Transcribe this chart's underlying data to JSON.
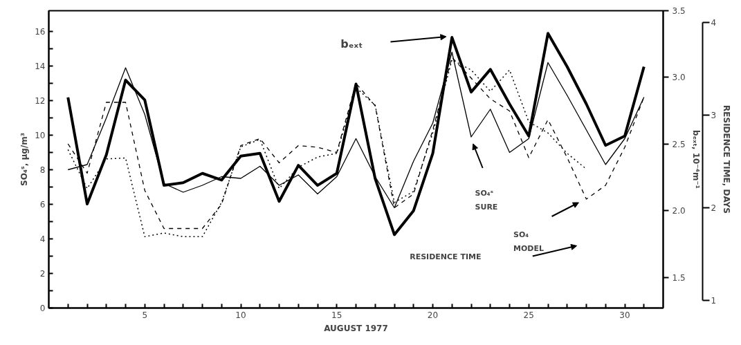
{
  "chart_data": {
    "type": "line",
    "xlabel": "AUGUST 1977",
    "ylabel": "SO₄ˢ, μg/m³",
    "y2label": "bₑₓₜ, 10⁻⁴m⁻¹",
    "y3label": "RESIDENCE TIME, DAYS",
    "x": [
      1,
      2,
      3,
      4,
      5,
      6,
      7,
      8,
      9,
      10,
      11,
      12,
      13,
      14,
      15,
      16,
      17,
      18,
      19,
      20,
      21,
      22,
      23,
      24,
      25,
      26,
      27,
      28,
      29,
      30,
      31
    ],
    "xlim": [
      0,
      32
    ],
    "xticks": [
      {
        "value": 1,
        "label": null
      },
      {
        "value": 2,
        "label": null
      },
      {
        "value": 3,
        "label": null
      },
      {
        "value": 4,
        "label": null
      },
      5,
      {
        "value": 6,
        "label": null
      },
      {
        "value": 7,
        "label": null
      },
      {
        "value": 8,
        "label": null
      },
      {
        "value": 9,
        "label": null
      },
      10,
      {
        "value": 11,
        "label": null
      },
      {
        "value": 12,
        "label": null
      },
      {
        "value": 13,
        "label": null
      },
      {
        "value": 14,
        "label": null
      },
      15,
      {
        "value": 16,
        "label": null
      },
      {
        "value": 17,
        "label": null
      },
      {
        "value": 18,
        "label": null
      },
      {
        "value": 19,
        "label": null
      },
      20,
      {
        "value": 21,
        "label": null
      },
      {
        "value": 22,
        "label": null
      },
      {
        "value": 23,
        "label": null
      },
      {
        "value": 24,
        "label": null
      },
      25,
      {
        "value": 26,
        "label": null
      },
      {
        "value": 27,
        "label": null
      },
      {
        "value": 28,
        "label": null
      },
      {
        "value": 29,
        "label": null
      },
      30,
      {
        "value": 31,
        "label": null
      }
    ],
    "ylim": [
      0,
      17.2
    ],
    "yticks": [
      0,
      {
        "value": 1,
        "label": null
      },
      2,
      {
        "value": 3,
        "label": null
      },
      4,
      {
        "value": 5,
        "label": null
      },
      6,
      {
        "value": 7,
        "label": null
      },
      8,
      {
        "value": 9,
        "label": null
      },
      10,
      {
        "value": 11,
        "label": null
      },
      12,
      {
        "value": 13,
        "label": null
      },
      14,
      {
        "value": 15,
        "label": null
      },
      16
    ],
    "y2lim": [
      1.27,
      3.5
    ],
    "y2ticks": [
      {
        "value": 1.5,
        "label": "1.5"
      },
      {
        "value": 2.0,
        "label": "2.0"
      },
      {
        "value": 2.5,
        "label": "2.5"
      },
      {
        "value": 3.0,
        "label": "3.0"
      },
      {
        "value": 3.5,
        "label": "3.5"
      }
    ],
    "y3lim": [
      0.92,
      4.13
    ],
    "y3ticks": [
      1,
      2,
      3,
      4
    ],
    "grid": false,
    "marker": "none",
    "series": [
      {
        "color": "#000000",
        "axis": "y2",
        "line_style": "solid",
        "values": [
          2.85,
          2.05,
          2.42,
          2.98,
          2.83,
          2.19,
          2.21,
          2.28,
          2.23,
          2.41,
          2.43,
          2.07,
          2.34,
          2.19,
          2.28,
          2.95,
          2.24,
          1.82,
          2.0,
          2.43,
          3.3,
          2.89,
          3.06,
          2.8,
          2.56,
          3.33,
          3.08,
          2.8,
          2.49,
          2.56,
          3.08
        ]
      },
      {
        "color": "#000000",
        "line_style": "solid",
        "values": [
          8.0,
          8.3,
          11.0,
          13.9,
          11.2,
          7.2,
          6.7,
          7.1,
          7.6,
          7.5,
          8.2,
          7.1,
          7.7,
          6.6,
          7.6,
          9.8,
          7.6,
          5.8,
          8.5,
          10.7,
          14.8,
          9.9,
          11.5,
          9.0,
          9.8,
          14.2,
          12.3,
          10.3,
          8.3,
          9.8,
          12.2
        ]
      },
      {
        "color": "#000000",
        "line_style": "dashed",
        "values": [
          9.5,
          7.8,
          11.9,
          11.9,
          6.8,
          4.6,
          4.6,
          4.6,
          6.0,
          9.4,
          9.8,
          8.4,
          9.4,
          9.3,
          9.0,
          13.0,
          11.7,
          5.8,
          6.6,
          10.3,
          14.5,
          13.3,
          12.1,
          11.4,
          8.7,
          10.9,
          8.7,
          6.3,
          7.1,
          9.3,
          12.2
        ]
      },
      {
        "color": "#000000",
        "axis": "y3",
        "line_style": "dotted",
        "values": [
          2.63,
          2.21,
          2.53,
          2.54,
          1.69,
          1.73,
          1.69,
          1.69,
          2.06,
          2.66,
          2.74,
          2.21,
          2.44,
          2.55,
          2.59,
          3.3,
          3.11,
          2.06,
          2.18,
          2.81,
          3.6,
          3.49,
          3.26,
          3.49,
          2.93,
          2.81,
          2.59,
          2.42,
          null,
          null,
          null
        ]
      }
    ],
    "annotations": [
      "bₑₓₜ",
      "SO₄ˢ\nSURE",
      "SO₄\nMODEL",
      "RESIDENCE TIME"
    ]
  }
}
